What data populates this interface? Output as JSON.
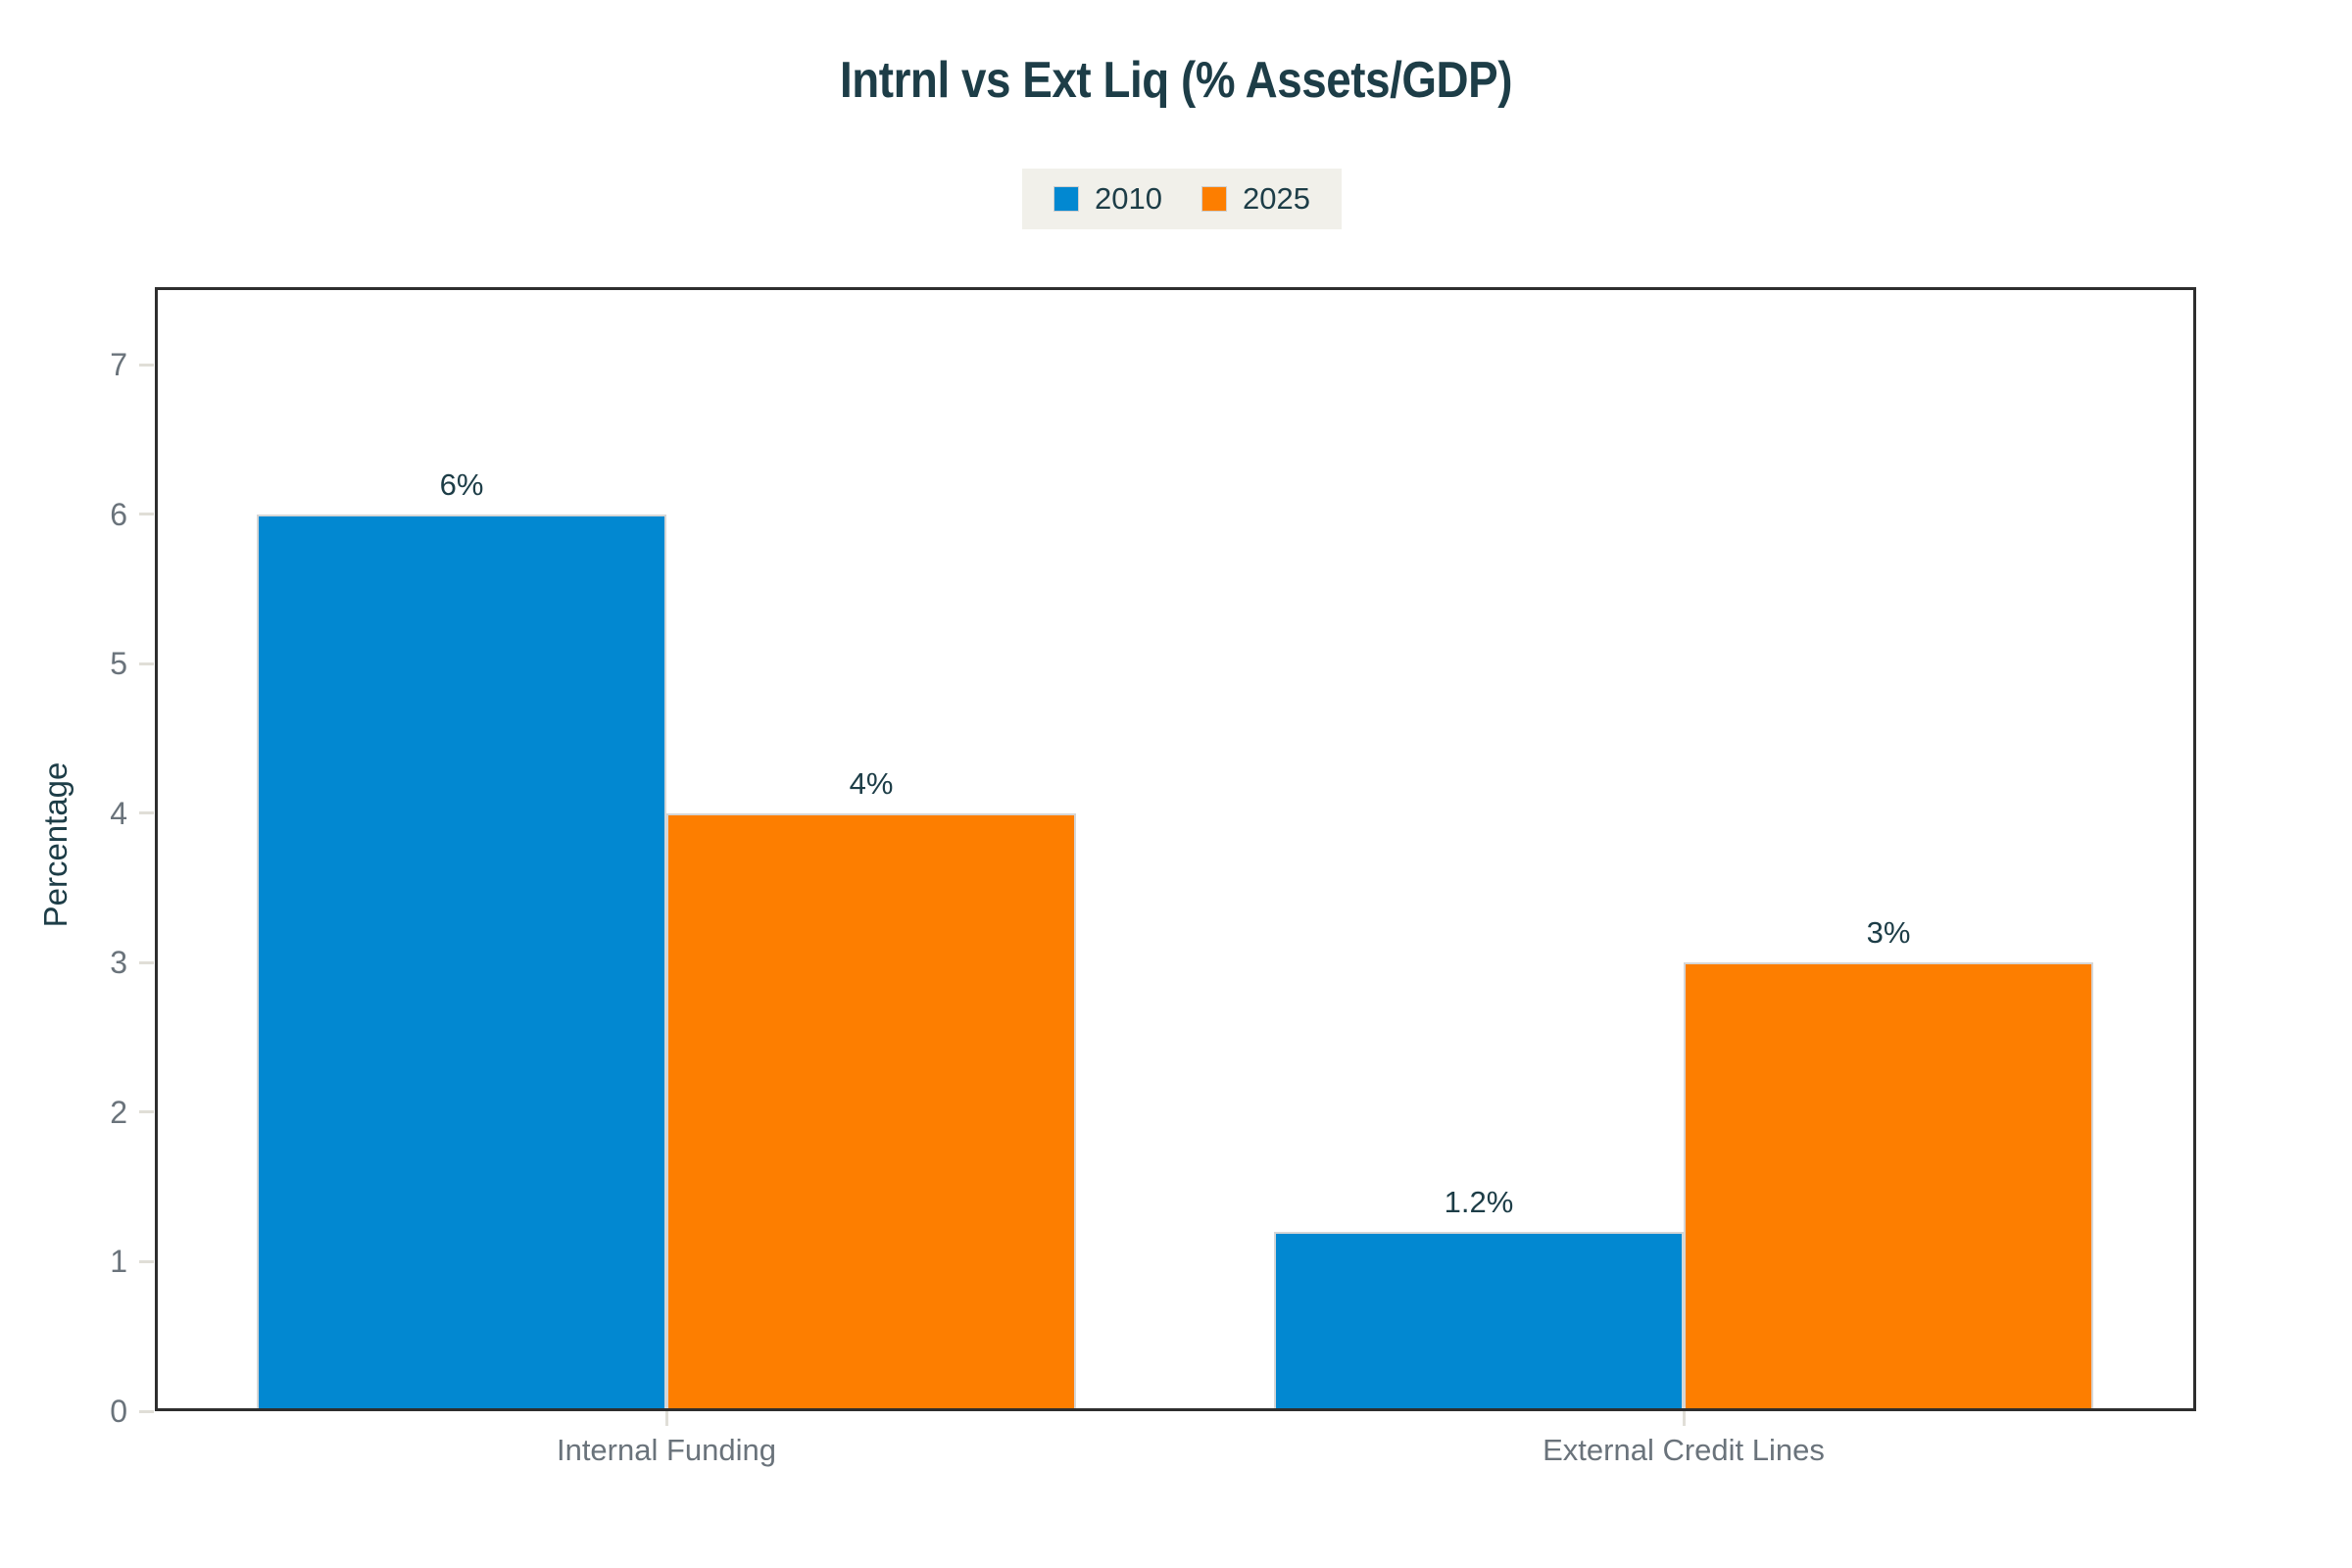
{
  "chart_data": {
    "type": "bar",
    "title": "Intrnl vs Ext Liq (% Assets/GDP)",
    "ylabel": "Percentage",
    "categories": [
      "Internal Funding",
      "External Credit Lines"
    ],
    "series": [
      {
        "name": "2010",
        "color": "#0288d1",
        "values": [
          6,
          1.2
        ],
        "labels": [
          "6%",
          "1.2%"
        ]
      },
      {
        "name": "2025",
        "color": "#fd7e00",
        "values": [
          4,
          3
        ],
        "labels": [
          "4%",
          "3%"
        ]
      }
    ],
    "yticks": [
      "0",
      "1",
      "2",
      "3",
      "4",
      "5",
      "6",
      "7"
    ],
    "ylim": [
      0,
      7.52
    ],
    "grid": false,
    "legend_position": "top",
    "colors": {
      "title_text": "#1d3d47",
      "legend_background": "#f1f0ea",
      "axis_border": "#2e2e2e",
      "tick_mark": "#e0ded7",
      "tick_label": "#6a737b",
      "value_label": "#1d3d47",
      "bar_stroke": "#d6d6d6",
      "background": "#ffffff"
    }
  }
}
